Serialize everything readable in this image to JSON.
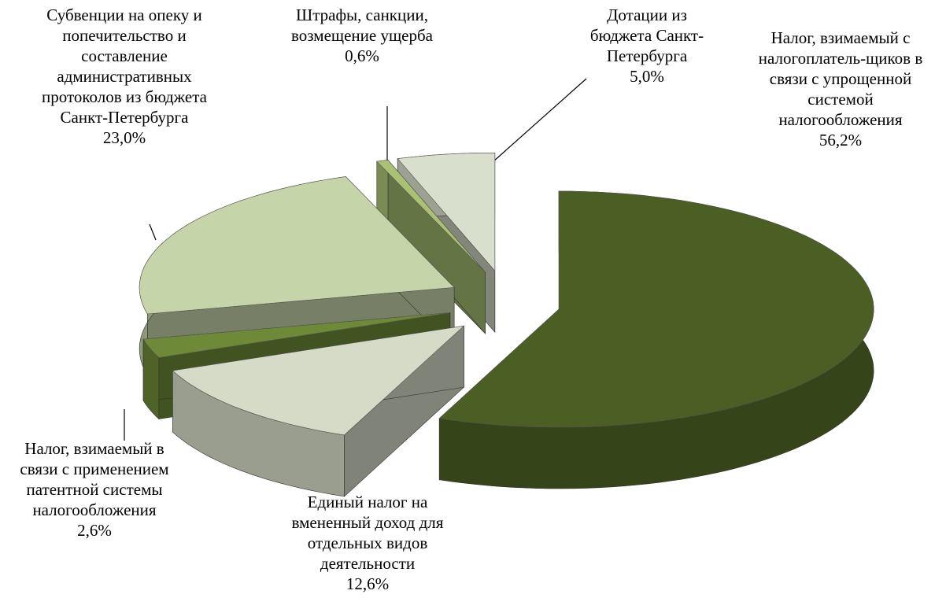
{
  "chart_data": {
    "type": "pie",
    "categories": [
      "Налог, взимаемый с налогоплатель-щиков в связи с упрощенной системой налогообложения",
      "Единый налог на вмененный доход для отдельных видов деятельности",
      "Налог, взимаемый в связи с применением патентной системы налогообложения",
      "Субвенции на опеку и попечительство и составление административных протоколов из бюджета Санкт-Петербурга",
      "Штрафы, санкции, возмещение ущерба",
      "Дотации из бюджета Санкт-Петербурга"
    ],
    "values": [
      56.2,
      12.6,
      2.6,
      23.0,
      0.6,
      5.0
    ],
    "value_labels": [
      "56,2%",
      "12,6%",
      "2,6%",
      "23,0%",
      "0,6%",
      "5,0%"
    ],
    "colors": [
      "#4b5e24",
      "#d5dbc7",
      "#6e8a38",
      "#c6d4aa",
      "#a9c173",
      "#d8dfcd"
    ]
  }
}
